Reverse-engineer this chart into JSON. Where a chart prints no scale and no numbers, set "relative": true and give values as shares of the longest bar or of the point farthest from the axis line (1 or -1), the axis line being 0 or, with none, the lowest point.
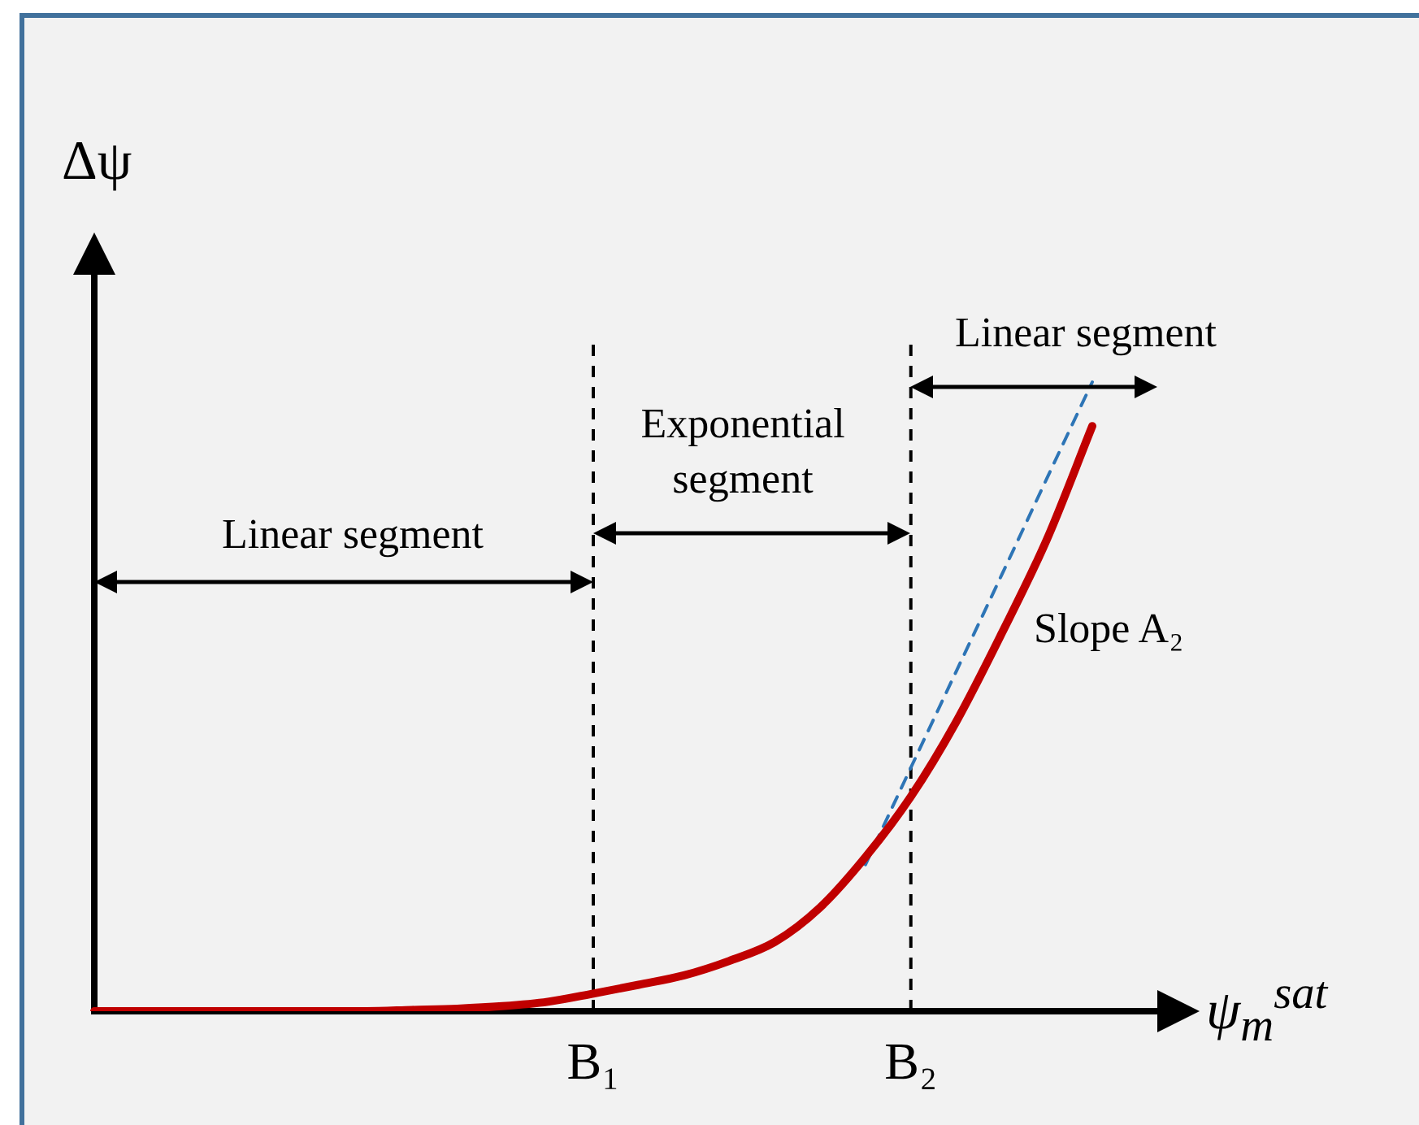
{
  "chart_data": {
    "type": "line",
    "relative": true,
    "xlabel": "ψ$_{m}$$^{sat}$",
    "ylabel": "Δψ",
    "tick_labels": "x",
    "categories": [
      null,
      null,
      null,
      null,
      null,
      null,
      null,
      null,
      null,
      null,
      null,
      "B₁",
      null,
      null,
      null,
      null,
      null,
      null,
      "B₂",
      null,
      null,
      null,
      null
    ],
    "series": [
      {
        "color": "#c00000",
        "values": [
          0,
          0,
          0,
          0,
          0,
          0,
          0,
          0.002,
          0.004,
          0.008,
          0.015,
          0.028,
          0.042,
          0.057,
          0.08,
          0.11,
          0.165,
          0.245,
          0.341,
          0.46,
          0.6,
          0.75,
          0.93
        ]
      },
      {
        "color": "#2e75b6",
        "line_style": "dashed",
        "values": [
          null,
          null,
          null,
          null,
          null,
          null,
          null,
          null,
          null,
          null,
          null,
          null,
          null,
          null,
          null,
          null,
          null,
          0.233,
          0.387,
          0.54,
          0.693,
          0.847,
          1.0
        ]
      }
    ],
    "ref_lines": [
      {
        "axis": "x",
        "value": "B₁",
        "line_style": "dashed",
        "color": "#000000"
      },
      {
        "axis": "x",
        "value": "B₂",
        "line_style": "dashed",
        "color": "#000000"
      }
    ],
    "annotations": [
      "Linear segment",
      "Exponential\nsegment",
      "Linear segment",
      "Slope A₂"
    ],
    "marker": "none",
    "legend": false
  }
}
